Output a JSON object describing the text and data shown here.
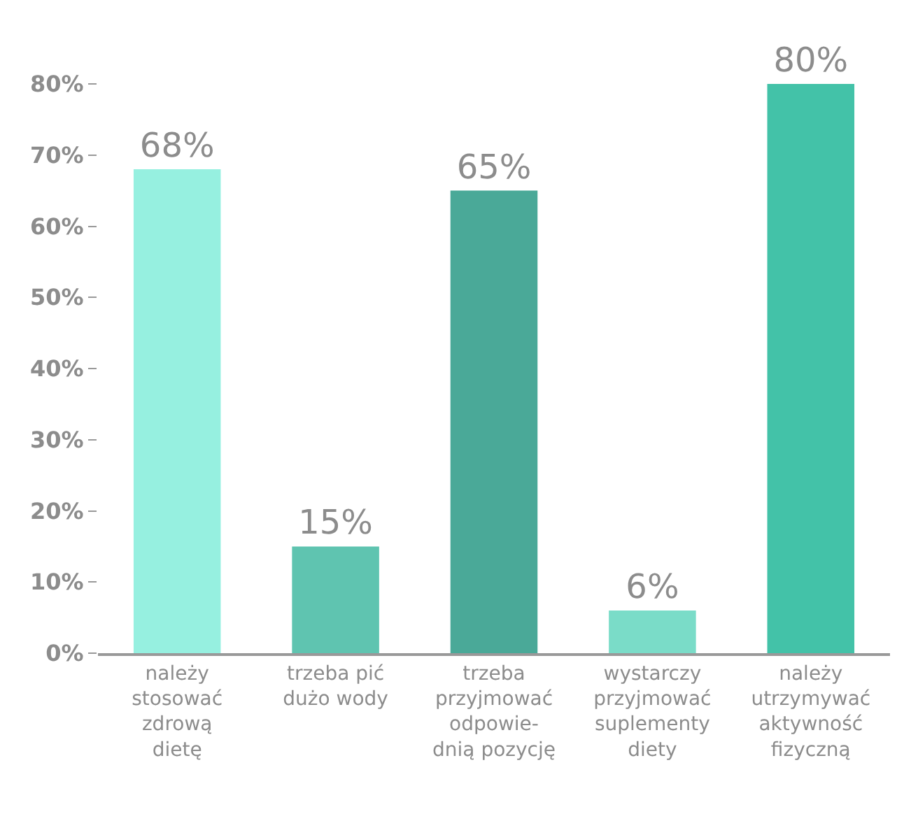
{
  "chart_data": {
    "type": "bar",
    "categories": [
      "należy\nstosować\nzdrową\ndietę",
      "trzeba pić\ndużo wody",
      "trzeba\nprzyjmować\nodpowie-\ndnią pozycję",
      "wystarczy\nprzyjmować\nsuplementy\ndiety",
      "należy\nutrzymywać\naktywność\nfizyczną"
    ],
    "values": [
      68,
      15,
      65,
      6,
      80
    ],
    "colors": [
      "#96f0e0",
      "#5fc4b0",
      "#4aa998",
      "#7adcc8",
      "#43c2a8"
    ],
    "value_labels": [
      "68%",
      "15%",
      "65%",
      "6%",
      "80%"
    ],
    "ylim": [
      0,
      80
    ],
    "yticks": [
      {
        "value": 0,
        "label": "0%"
      },
      {
        "value": 10,
        "label": "10%"
      },
      {
        "value": 20,
        "label": "20%"
      },
      {
        "value": 30,
        "label": "30%"
      },
      {
        "value": 40,
        "label": "40%"
      },
      {
        "value": 50,
        "label": "50%"
      },
      {
        "value": 60,
        "label": "60%"
      },
      {
        "value": 70,
        "label": "70%"
      },
      {
        "value": 80,
        "label": "80%"
      }
    ]
  }
}
